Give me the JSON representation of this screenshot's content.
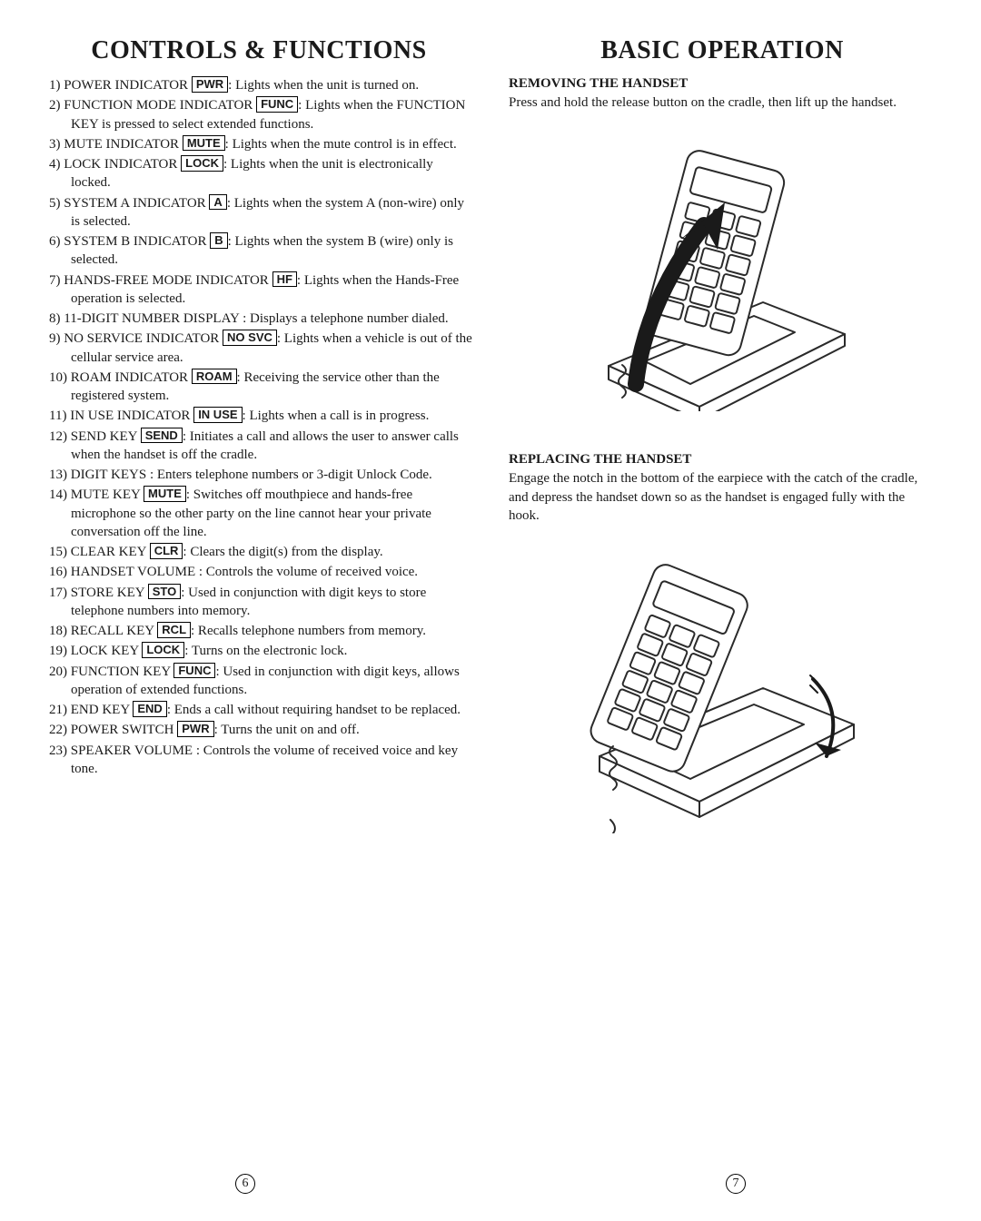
{
  "left": {
    "title": "CONTROLS & FUNCTIONS",
    "items": [
      {
        "name": "POWER INDICATOR",
        "key": "PWR",
        "desc": ": Lights when the unit is turned on."
      },
      {
        "name": "FUNCTION MODE INDICATOR",
        "key": "FUNC",
        "desc": ": Lights when the FUNCTION KEY is pressed to select extended functions."
      },
      {
        "name": "MUTE INDICATOR",
        "key": "MUTE",
        "desc": ": Lights when the mute control is in effect."
      },
      {
        "name": "LOCK INDICATOR",
        "key": "LOCK",
        "desc": ": Lights when the unit is electronically locked."
      },
      {
        "name": "SYSTEM A INDICATOR",
        "key": "A",
        "desc": ": Lights when the system A (non-wire) only is selected."
      },
      {
        "name": "SYSTEM B INDICATOR",
        "key": "B",
        "desc": ": Lights when the system B (wire) only is selected."
      },
      {
        "name": "HANDS-FREE MODE INDICATOR",
        "key": "HF",
        "desc": ": Lights when the Hands-Free operation is selected."
      },
      {
        "name": "11-DIGIT NUMBER DISPLAY",
        "key": "",
        "desc": ": Displays a telephone number dialed."
      },
      {
        "name": "NO SERVICE INDICATOR",
        "key": "NO SVC",
        "desc": ": Lights when a vehicle is out of the cellular service area."
      },
      {
        "name": "ROAM INDICATOR",
        "key": "ROAM",
        "desc": ": Receiving the service other than the registered system."
      },
      {
        "name": "IN USE INDICATOR",
        "key": "IN USE",
        "desc": ": Lights when a call is in progress."
      },
      {
        "name": "SEND KEY",
        "key": "SEND",
        "desc": ": Initiates a call and allows the user to answer calls when the handset is off the cradle."
      },
      {
        "name": "DIGIT KEYS",
        "key": "",
        "desc": ": Enters telephone numbers or 3-digit Unlock Code."
      },
      {
        "name": "MUTE KEY",
        "key": "MUTE",
        "desc": ": Switches off mouthpiece and hands-free microphone so the other party on the line cannot hear your private conversation off the line."
      },
      {
        "name": "CLEAR KEY",
        "key": "CLR",
        "desc": ": Clears the digit(s) from the display."
      },
      {
        "name": "HANDSET VOLUME",
        "key": "",
        "desc": ": Controls the volume of received voice."
      },
      {
        "name": "STORE KEY",
        "key": "STO",
        "desc": ": Used in conjunction with digit keys to store telephone numbers into memory."
      },
      {
        "name": "RECALL KEY",
        "key": "RCL",
        "desc": ": Recalls telephone numbers from memory."
      },
      {
        "name": "LOCK KEY",
        "key": "LOCK",
        "desc": ": Turns on the electronic lock."
      },
      {
        "name": "FUNCTION KEY",
        "key": "FUNC",
        "desc": ": Used in conjunction with digit keys, allows operation of extended functions."
      },
      {
        "name": "END KEY",
        "key": "END",
        "desc": ": Ends a call without requiring handset to be replaced."
      },
      {
        "name": "POWER SWITCH",
        "key": "PWR",
        "desc": ": Turns the unit on and off."
      },
      {
        "name": "SPEAKER VOLUME",
        "key": "",
        "desc": ": Controls the volume of received voice and key tone."
      }
    ]
  },
  "right": {
    "title": "BASIC OPERATION",
    "sec1_head": "REMOVING THE HANDSET",
    "sec1_body": "Press and hold the release button on the cradle, then lift up the handset.",
    "sec2_head": "REPLACING THE HANDSET",
    "sec2_body": "Engage the notch in the bottom of the earpiece with the catch of the cradle, and depress the handset down so as the handset is engaged fully with the hook."
  },
  "pagenum_left": "6",
  "pagenum_right": "7",
  "style": {
    "page_bg": "#ffffff",
    "text_color": "#1a1a1a",
    "title_fontsize_pt": 21,
    "body_fontsize_pt": 11,
    "keycap_border": "#000000",
    "illus_stroke": "#2a2a2a",
    "illus_fill": "#ffffff",
    "arrow_fill": "#1a1a1a"
  }
}
